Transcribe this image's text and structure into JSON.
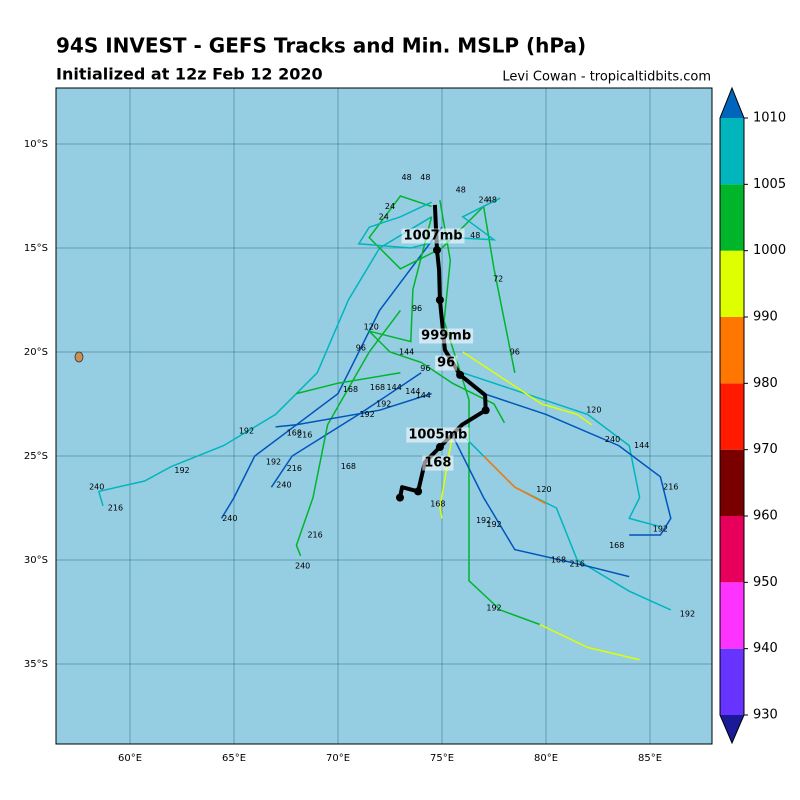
{
  "map": {
    "title": "94S INVEST - GEFS Tracks and Min. MSLP (hPa)",
    "subtitle": "Initialized at 12z Feb 12 2020",
    "credit": "Levi Cowan - tropicaltidbits.com",
    "lon_ticks": [
      {
        "value": 60,
        "label": "60°E"
      },
      {
        "value": 65,
        "label": "65°E"
      },
      {
        "value": 70,
        "label": "70°E"
      },
      {
        "value": 75,
        "label": "75°E"
      },
      {
        "value": 80,
        "label": "80°E"
      },
      {
        "value": 85,
        "label": "85°E"
      }
    ],
    "lat_ticks": [
      {
        "value": -10,
        "label": "10°S"
      },
      {
        "value": -15,
        "label": "15°S"
      },
      {
        "value": -20,
        "label": "20°S"
      },
      {
        "value": -25,
        "label": "25°S"
      },
      {
        "value": -30,
        "label": "30°S"
      },
      {
        "value": -35,
        "label": "35°S"
      }
    ],
    "colorbar": {
      "levels": [
        930,
        940,
        950,
        960,
        970,
        980,
        990,
        1000,
        1005,
        1010
      ],
      "colors": [
        "#6633ff",
        "#ff33ff",
        "#e6005c",
        "#7a0000",
        "#ff1a00",
        "#ff7700",
        "#ddff00",
        "#00b52a",
        "#00b5bb"
      ],
      "under": "#1a1a99",
      "over": "#0066bb"
    },
    "tracks": [
      {
        "color": "#00b5bb",
        "points": [
          [
            74.5,
            -13.5
          ],
          [
            72,
            -15
          ],
          [
            70.5,
            -17.5
          ],
          [
            69,
            -21
          ],
          [
            67,
            -23
          ],
          [
            64.5,
            -24.5
          ],
          [
            62,
            -25.5
          ],
          [
            60.7,
            -26.2
          ],
          [
            58.5,
            -26.7
          ],
          [
            58.7,
            -27.4
          ]
        ],
        "labels": [
          {
            "text": "192",
            "lon": 62.5,
            "lat": -25.7
          },
          {
            "text": "240",
            "lon": 58.4,
            "lat": -26.5
          },
          {
            "text": "216",
            "lon": 59.3,
            "lat": -27.5
          }
        ]
      },
      {
        "color": "#0055bb",
        "points": [
          [
            75,
            -14
          ],
          [
            72,
            -18
          ],
          [
            70,
            -22
          ],
          [
            68,
            -23.5
          ],
          [
            66,
            -25
          ],
          [
            65,
            -27
          ],
          [
            64.4,
            -28
          ]
        ],
        "labels": [
          {
            "text": "216",
            "lon": 68.4,
            "lat": -24
          },
          {
            "text": "240",
            "lon": 64.8,
            "lat": -28
          }
        ]
      },
      {
        "color": "#0055bb",
        "points": [
          [
            74,
            -21
          ],
          [
            71,
            -23
          ],
          [
            67.8,
            -25
          ],
          [
            66.8,
            -26.5
          ]
        ],
        "labels": [
          {
            "text": "192",
            "lon": 66.9,
            "lat": -25.3
          },
          {
            "text": "240",
            "lon": 67.4,
            "lat": -26.4
          },
          {
            "text": "216",
            "lon": 67.9,
            "lat": -25.6
          }
        ]
      },
      {
        "color": "#00b52a",
        "points": [
          [
            73,
            -18
          ],
          [
            71.5,
            -20
          ],
          [
            69.5,
            -23.5
          ],
          [
            68.8,
            -27
          ],
          [
            68,
            -29.3
          ],
          [
            68.2,
            -29.8
          ]
        ],
        "labels": [
          {
            "text": "168",
            "lon": 70.5,
            "lat": -25.5
          },
          {
            "text": "216",
            "lon": 68.9,
            "lat": -28.8
          },
          {
            "text": "240",
            "lon": 68.3,
            "lat": -30.3
          }
        ]
      },
      {
        "color": "#00b52a",
        "points": [
          [
            74.9,
            -12.7
          ],
          [
            75.4,
            -15.6
          ],
          [
            75.1,
            -18.5
          ],
          [
            76.3,
            -22.3
          ],
          [
            76.3,
            -27.1
          ],
          [
            76.3,
            -31
          ],
          [
            77.8,
            -32.4
          ],
          [
            79.7,
            -33.1
          ]
        ],
        "labels": [
          {
            "text": "192",
            "lon": 77.5,
            "lat": -32.3
          }
        ]
      },
      {
        "color": "#ddff00",
        "points": [
          [
            79.7,
            -33.1
          ],
          [
            82,
            -34.2
          ],
          [
            84.5,
            -34.8
          ]
        ],
        "labels": []
      },
      {
        "color": "#00b5bb",
        "points": [
          [
            76,
            -21
          ],
          [
            79,
            -22
          ],
          [
            82,
            -23
          ],
          [
            84,
            -24.5
          ],
          [
            84.5,
            -27
          ],
          [
            84,
            -28
          ],
          [
            85.5,
            -28.4
          ]
        ],
        "labels": [
          {
            "text": "240",
            "lon": 83.2,
            "lat": -24.2
          },
          {
            "text": "192",
            "lon": 85.5,
            "lat": -28.5
          }
        ]
      },
      {
        "color": "#0055bb",
        "points": [
          [
            77,
            -22
          ],
          [
            80,
            -23
          ],
          [
            83.5,
            -24.5
          ],
          [
            85.5,
            -26
          ],
          [
            86,
            -28
          ],
          [
            85.5,
            -28.8
          ],
          [
            84,
            -28.8
          ]
        ],
        "labels": [
          {
            "text": "144",
            "lon": 84.6,
            "lat": -24.5
          },
          {
            "text": "216",
            "lon": 86,
            "lat": -26.5
          },
          {
            "text": "168",
            "lon": 83.4,
            "lat": -29.3
          }
        ]
      },
      {
        "color": "#00b5bb",
        "points": [
          [
            76,
            -24
          ],
          [
            78.5,
            -26.5
          ],
          [
            80.5,
            -27.5
          ],
          [
            81.5,
            -30
          ],
          [
            84,
            -31.5
          ],
          [
            86,
            -32.4
          ]
        ],
        "labels": [
          {
            "text": "168",
            "lon": 80.6,
            "lat": -30
          },
          {
            "text": "216",
            "lon": 81.5,
            "lat": -30.2
          },
          {
            "text": "192",
            "lon": 86.8,
            "lat": -32.6
          }
        ]
      },
      {
        "color": "#0055bb",
        "points": [
          [
            75.5,
            -24
          ],
          [
            77,
            -27
          ],
          [
            78.5,
            -29.5
          ],
          [
            82,
            -30.3
          ],
          [
            84,
            -30.8
          ]
        ],
        "labels": [
          {
            "text": "192",
            "lon": 77,
            "lat": -28.1
          },
          {
            "text": "192",
            "lon": 77.5,
            "lat": -28.3
          }
        ]
      },
      {
        "color": "#ddff00",
        "points": [
          [
            76,
            -20
          ],
          [
            79.8,
            -22.5
          ],
          [
            81.5,
            -23
          ],
          [
            82.2,
            -23.5
          ]
        ],
        "labels": [
          {
            "text": "120",
            "lon": 82.3,
            "lat": -22.8
          }
        ]
      },
      {
        "color": "#00b52a",
        "points": [
          [
            74.5,
            -13
          ],
          [
            73,
            -12.5
          ],
          [
            71.5,
            -14.5
          ],
          [
            73,
            -16
          ],
          [
            75,
            -15
          ],
          [
            77,
            -13
          ],
          [
            77.5,
            -16
          ],
          [
            78,
            -18.5
          ],
          [
            78.5,
            -21
          ]
        ],
        "labels": [
          {
            "text": "48",
            "lon": 73.3,
            "lat": -11.6
          },
          {
            "text": "48",
            "lon": 74.2,
            "lat": -11.6
          },
          {
            "text": "48",
            "lon": 75.9,
            "lat": -12.2
          },
          {
            "text": "72",
            "lon": 77.7,
            "lat": -16.5
          },
          {
            "text": "96",
            "lon": 78.5,
            "lat": -20
          },
          {
            "text": "24",
            "lon": 72.5,
            "lat": -13
          },
          {
            "text": "24",
            "lon": 72.2,
            "lat": -13.5
          }
        ]
      },
      {
        "color": "#00b5bb",
        "points": [
          [
            74.5,
            -12.8
          ],
          [
            73,
            -13.5
          ],
          [
            71.5,
            -14
          ],
          [
            71,
            -14.8
          ],
          [
            73.5,
            -15
          ],
          [
            75.5,
            -14.5
          ],
          [
            77.5,
            -14.6
          ],
          [
            76,
            -13.5
          ],
          [
            77.8,
            -12.6
          ]
        ],
        "labels": [
          {
            "text": "24",
            "lon": 77,
            "lat": -12.7
          },
          {
            "text": "48",
            "lon": 77.4,
            "lat": -12.7
          },
          {
            "text": "48",
            "lon": 76.6,
            "lat": -14.4
          }
        ]
      },
      {
        "color": "#00b52a",
        "points": [
          [
            74.5,
            -13.5
          ],
          [
            73.6,
            -17
          ],
          [
            73.5,
            -19.5
          ],
          [
            71.5,
            -19
          ],
          [
            72.5,
            -20
          ],
          [
            74,
            -20.5
          ],
          [
            75.5,
            -21.5
          ],
          [
            77.5,
            -22.5
          ],
          [
            78,
            -23.4
          ]
        ],
        "labels": [
          {
            "text": "120",
            "lon": 71.6,
            "lat": -18.8
          },
          {
            "text": "96",
            "lon": 71.1,
            "lat": -19.8
          },
          {
            "text": "144",
            "lon": 73.3,
            "lat": -20
          },
          {
            "text": "96",
            "lon": 73.8,
            "lat": -17.9
          },
          {
            "text": "96",
            "lon": 74.2,
            "lat": -20.8
          },
          {
            "text": "144",
            "lon": 74.1,
            "lat": -22.1
          },
          {
            "text": "144",
            "lon": 73.6,
            "lat": -21.9
          }
        ]
      },
      {
        "color": "#00b52a",
        "points": [
          [
            73,
            -21
          ],
          [
            70,
            -21.5
          ],
          [
            68,
            -22
          ]
        ],
        "labels": [
          {
            "text": "168",
            "lon": 70.6,
            "lat": -21.8
          },
          {
            "text": "168",
            "lon": 71.9,
            "lat": -21.7
          },
          {
            "text": "144",
            "lon": 72.7,
            "lat": -21.7
          }
        ]
      },
      {
        "color": "#0055bb",
        "points": [
          [
            74.5,
            -22
          ],
          [
            72,
            -22.8
          ],
          [
            68,
            -23.5
          ],
          [
            67,
            -23.6
          ]
        ],
        "labels": [
          {
            "text": "168",
            "lon": 67.9,
            "lat": -23.9
          },
          {
            "text": "192",
            "lon": 72.2,
            "lat": -22.5
          },
          {
            "text": "192",
            "lon": 71.4,
            "lat": -23
          },
          {
            "text": "192",
            "lon": 65.6,
            "lat": -23.8
          }
        ]
      },
      {
        "color": "#ff7700",
        "points": [
          [
            77,
            -25
          ],
          [
            78.5,
            -26.5
          ],
          [
            80,
            -27.3
          ]
        ],
        "labels": [
          {
            "text": "120",
            "lon": 79.9,
            "lat": -26.6
          }
        ]
      },
      {
        "color": "#ddff00",
        "points": [
          [
            75.5,
            -24
          ],
          [
            74.9,
            -27.5
          ],
          [
            75,
            -28
          ]
        ],
        "labels": [
          {
            "text": "168",
            "lon": 74.8,
            "lat": -27.3
          }
        ]
      }
    ],
    "mean_track": {
      "color": "#000000",
      "points": [
        [
          74.66,
          -12.93
        ],
        [
          74.76,
          -15.1
        ],
        [
          74.86,
          -16.06
        ],
        [
          74.9,
          -17.5
        ],
        [
          75.14,
          -19.9
        ],
        [
          75.87,
          -21.1
        ],
        [
          77.07,
          -22.07
        ],
        [
          77.1,
          -22.8
        ],
        [
          75.96,
          -23.5
        ],
        [
          74.9,
          -24.57
        ],
        [
          74.18,
          -25.3
        ],
        [
          73.85,
          -26.7
        ],
        [
          73.08,
          -26.5
        ],
        [
          72.98,
          -27
        ]
      ],
      "labels": [
        {
          "text": "1007mb",
          "lon": 74.57,
          "lat": -14.42
        },
        {
          "text": "999mb",
          "lon": 75.2,
          "lat": -19.23
        },
        {
          "text": "96",
          "lon": 75.2,
          "lat": -20.53
        },
        {
          "text": "1005mb",
          "lon": 74.8,
          "lat": -23.99
        },
        {
          "text": "168",
          "lon": 74.8,
          "lat": -25.34
        }
      ]
    }
  }
}
